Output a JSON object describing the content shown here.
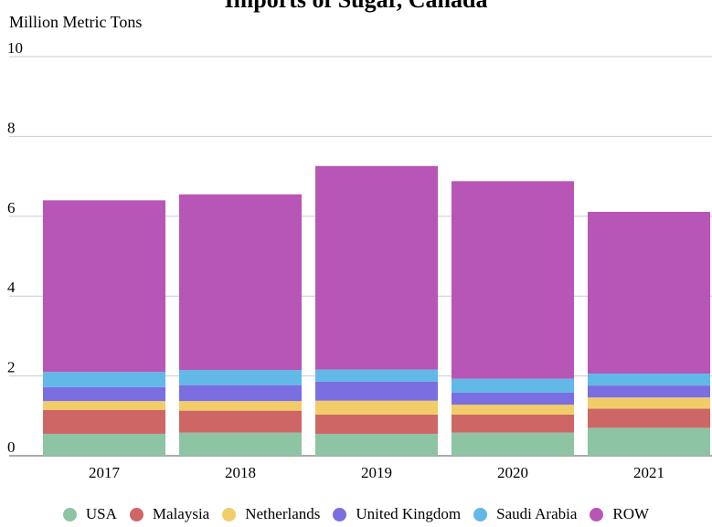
{
  "title": "Imports of Sugar, Canada",
  "chart_data": {
    "type": "bar",
    "stacked": true,
    "title": "",
    "ylabel": "Million Metric Tons",
    "xlabel": "",
    "ylim": [
      0,
      10
    ],
    "yticks": [
      0,
      2,
      4,
      6,
      8,
      10
    ],
    "categories": [
      "2017",
      "2018",
      "2019",
      "2020",
      "2021"
    ],
    "series": [
      {
        "name": "USA",
        "color": "#8cc4a4",
        "values": [
          0.55,
          0.58,
          0.55,
          0.58,
          0.7
        ]
      },
      {
        "name": "Malaysia",
        "color": "#cf6666",
        "values": [
          0.6,
          0.55,
          0.48,
          0.45,
          0.48
        ]
      },
      {
        "name": "Netherlands",
        "color": "#f1cd6a",
        "values": [
          0.22,
          0.24,
          0.35,
          0.25,
          0.28
        ]
      },
      {
        "name": "United Kingdom",
        "color": "#7b6ee0",
        "values": [
          0.35,
          0.4,
          0.48,
          0.3,
          0.3
        ]
      },
      {
        "name": "Saudi Arabia",
        "color": "#62b8e6",
        "values": [
          0.38,
          0.38,
          0.3,
          0.35,
          0.3
        ]
      },
      {
        "name": "ROW",
        "color": "#b756b6",
        "values": [
          4.3,
          4.4,
          5.1,
          4.95,
          4.05
        ]
      }
    ],
    "grid": true,
    "legend_position": "bottom"
  }
}
